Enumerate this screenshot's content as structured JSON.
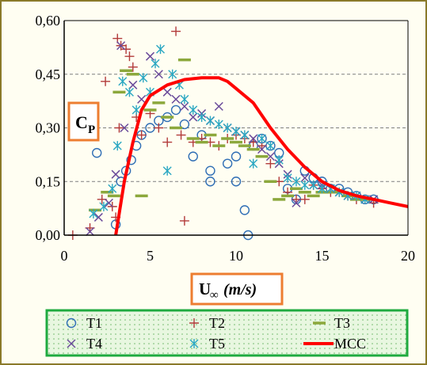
{
  "chart_data": {
    "type": "scatter",
    "title": "",
    "ylabel_main": "C",
    "ylabel_sub": "P",
    "xlabel_main": "U",
    "xlabel_sub": "∞",
    "xlabel_unit": "(m/s)",
    "xlim": [
      0,
      20
    ],
    "ylim": [
      0,
      0.6
    ],
    "x_ticks": [
      0,
      5,
      10,
      15,
      20
    ],
    "x_tick_labels": [
      "0",
      "5",
      "10",
      "15",
      "20"
    ],
    "y_ticks": [
      0,
      0.15,
      0.3,
      0.45,
      0.6
    ],
    "y_tick_labels": [
      "0,00",
      "0,15",
      "0,30",
      "0,45",
      "0,60"
    ],
    "grid": "horizontal dashed",
    "legend_position": "bottom",
    "colors": {
      "T1": "#2f6eb5",
      "T2": "#b23a3a",
      "T3": "#8ca83c",
      "T4": "#6a4a9a",
      "T5": "#2aa7c2",
      "MCC": "#ff0000",
      "frame": "#8a7a2a",
      "label_box": "#ed7d31",
      "legend_box": "#1faa3f",
      "legend_fill": "#e8f7e0"
    },
    "series": [
      {
        "name": "T1",
        "marker": "circle",
        "points": [
          [
            1.9,
            0.23
          ],
          [
            3.0,
            0.03
          ],
          [
            3.3,
            0.15
          ],
          [
            3.6,
            0.18
          ],
          [
            3.9,
            0.21
          ],
          [
            4.2,
            0.25
          ],
          [
            4.5,
            0.28
          ],
          [
            5.0,
            0.3
          ],
          [
            5.5,
            0.32
          ],
          [
            6.0,
            0.33
          ],
          [
            6.5,
            0.35
          ],
          [
            7.0,
            0.31
          ],
          [
            7.5,
            0.22
          ],
          [
            8.0,
            0.28
          ],
          [
            8.5,
            0.18
          ],
          [
            8.5,
            0.15
          ],
          [
            9.5,
            0.2
          ],
          [
            10.0,
            0.15
          ],
          [
            10.0,
            0.22
          ],
          [
            10.5,
            0.07
          ],
          [
            10.7,
            0.0
          ],
          [
            11.0,
            0.25
          ],
          [
            11.5,
            0.27
          ],
          [
            12.0,
            0.25
          ],
          [
            12.5,
            0.23
          ],
          [
            13.0,
            0.13
          ],
          [
            13.5,
            0.1
          ],
          [
            14.0,
            0.18
          ],
          [
            14.5,
            0.16
          ],
          [
            15.0,
            0.15
          ],
          [
            15.5,
            0.13
          ],
          [
            16.0,
            0.13
          ],
          [
            16.5,
            0.12
          ],
          [
            17.0,
            0.11
          ],
          [
            17.5,
            0.1
          ],
          [
            18.0,
            0.1
          ]
        ]
      },
      {
        "name": "T2",
        "marker": "plus",
        "points": [
          [
            0.5,
            0.0
          ],
          [
            1.5,
            0.02
          ],
          [
            2.2,
            0.1
          ],
          [
            2.4,
            0.43
          ],
          [
            2.8,
            0.08
          ],
          [
            3.0,
            0.05
          ],
          [
            3.2,
            0.3
          ],
          [
            3.1,
            0.55
          ],
          [
            3.3,
            0.53
          ],
          [
            3.6,
            0.52
          ],
          [
            3.8,
            0.5
          ],
          [
            4.0,
            0.47
          ],
          [
            4.2,
            0.33
          ],
          [
            4.5,
            0.28
          ],
          [
            5.0,
            0.34
          ],
          [
            5.5,
            0.3
          ],
          [
            6.0,
            0.26
          ],
          [
            6.5,
            0.57
          ],
          [
            6.8,
            0.28
          ],
          [
            7.0,
            0.04
          ],
          [
            7.5,
            0.26
          ],
          [
            8.0,
            0.27
          ],
          [
            8.5,
            0.26
          ],
          [
            9.0,
            0.25
          ],
          [
            9.5,
            0.27
          ],
          [
            10.0,
            0.28
          ],
          [
            10.5,
            0.27
          ],
          [
            11.0,
            0.26
          ],
          [
            11.5,
            0.25
          ],
          [
            12.0,
            0.2
          ],
          [
            12.5,
            0.15
          ],
          [
            13.0,
            0.12
          ],
          [
            13.5,
            0.1
          ],
          [
            14.0,
            0.1
          ],
          [
            14.5,
            0.14
          ],
          [
            15.0,
            0.13
          ],
          [
            15.5,
            0.12
          ],
          [
            16.0,
            0.12
          ],
          [
            16.5,
            0.11
          ],
          [
            17.0,
            0.1
          ],
          [
            17.5,
            0.1
          ],
          [
            18.0,
            0.09
          ]
        ]
      },
      {
        "name": "T3",
        "marker": "dash",
        "points": [
          [
            1.8,
            0.07
          ],
          [
            2.5,
            0.12
          ],
          [
            2.9,
            0.11
          ],
          [
            3.2,
            0.4
          ],
          [
            3.6,
            0.46
          ],
          [
            4.0,
            0.45
          ],
          [
            4.5,
            0.11
          ],
          [
            5.0,
            0.35
          ],
          [
            5.5,
            0.37
          ],
          [
            6.0,
            0.33
          ],
          [
            6.5,
            0.3
          ],
          [
            7.0,
            0.49
          ],
          [
            7.5,
            0.27
          ],
          [
            8.0,
            0.26
          ],
          [
            8.5,
            0.28
          ],
          [
            9.0,
            0.25
          ],
          [
            9.5,
            0.27
          ],
          [
            10.0,
            0.26
          ],
          [
            10.5,
            0.25
          ],
          [
            11.0,
            0.24
          ],
          [
            11.5,
            0.22
          ],
          [
            12.0,
            0.15
          ],
          [
            12.5,
            0.1
          ],
          [
            13.0,
            0.11
          ],
          [
            13.5,
            0.13
          ],
          [
            14.0,
            0.12
          ],
          [
            14.5,
            0.11
          ],
          [
            15.0,
            0.12
          ],
          [
            15.5,
            0.12
          ],
          [
            16.0,
            0.12
          ],
          [
            16.5,
            0.11
          ],
          [
            17.0,
            0.1
          ],
          [
            17.5,
            0.1
          ]
        ]
      },
      {
        "name": "T4",
        "marker": "cross",
        "points": [
          [
            1.5,
            0.01
          ],
          [
            2.0,
            0.05
          ],
          [
            2.6,
            0.09
          ],
          [
            3.0,
            0.17
          ],
          [
            3.3,
            0.53
          ],
          [
            3.5,
            0.3
          ],
          [
            4.0,
            0.42
          ],
          [
            4.5,
            0.38
          ],
          [
            5.0,
            0.5
          ],
          [
            5.5,
            0.45
          ],
          [
            6.0,
            0.4
          ],
          [
            6.5,
            0.38
          ],
          [
            7.0,
            0.36
          ],
          [
            7.5,
            0.33
          ],
          [
            8.0,
            0.34
          ],
          [
            8.5,
            0.32
          ],
          [
            9.0,
            0.36
          ],
          [
            9.5,
            0.3
          ],
          [
            10.0,
            0.29
          ],
          [
            10.5,
            0.28
          ],
          [
            11.0,
            0.27
          ],
          [
            11.5,
            0.24
          ],
          [
            12.0,
            0.22
          ],
          [
            12.5,
            0.2
          ],
          [
            13.0,
            0.17
          ],
          [
            13.5,
            0.09
          ],
          [
            14.0,
            0.16
          ],
          [
            14.5,
            0.14
          ],
          [
            15.0,
            0.14
          ],
          [
            15.5,
            0.13
          ],
          [
            16.0,
            0.12
          ],
          [
            16.5,
            0.11
          ],
          [
            17.0,
            0.11
          ],
          [
            17.5,
            0.1
          ],
          [
            18.0,
            0.1
          ]
        ]
      },
      {
        "name": "T5",
        "marker": "asterisk",
        "points": [
          [
            1.7,
            0.06
          ],
          [
            2.3,
            0.08
          ],
          [
            2.8,
            0.13
          ],
          [
            3.1,
            0.25
          ],
          [
            3.4,
            0.43
          ],
          [
            3.8,
            0.4
          ],
          [
            4.2,
            0.35
          ],
          [
            4.6,
            0.44
          ],
          [
            5.0,
            0.4
          ],
          [
            5.3,
            0.48
          ],
          [
            5.6,
            0.52
          ],
          [
            6.0,
            0.18
          ],
          [
            6.3,
            0.45
          ],
          [
            6.7,
            0.42
          ],
          [
            7.0,
            0.38
          ],
          [
            7.5,
            0.35
          ],
          [
            8.0,
            0.33
          ],
          [
            8.5,
            0.32
          ],
          [
            9.0,
            0.31
          ],
          [
            9.5,
            0.3
          ],
          [
            10.0,
            0.29
          ],
          [
            10.5,
            0.28
          ],
          [
            11.0,
            0.2
          ],
          [
            11.5,
            0.27
          ],
          [
            12.0,
            0.25
          ],
          [
            12.5,
            0.21
          ],
          [
            13.0,
            0.16
          ],
          [
            13.5,
            0.15
          ],
          [
            14.0,
            0.14
          ],
          [
            14.5,
            0.14
          ],
          [
            15.0,
            0.13
          ],
          [
            15.5,
            0.13
          ],
          [
            16.0,
            0.12
          ],
          [
            16.5,
            0.11
          ],
          [
            17.0,
            0.11
          ],
          [
            17.5,
            0.1
          ]
        ]
      },
      {
        "name": "MCC",
        "marker": "line",
        "points": [
          [
            3.0,
            0.0
          ],
          [
            3.5,
            0.15
          ],
          [
            4.0,
            0.26
          ],
          [
            4.5,
            0.35
          ],
          [
            5.0,
            0.39
          ],
          [
            6.0,
            0.42
          ],
          [
            7.0,
            0.435
          ],
          [
            8.0,
            0.44
          ],
          [
            9.0,
            0.44
          ],
          [
            9.5,
            0.43
          ],
          [
            10.0,
            0.41
          ],
          [
            11.0,
            0.37
          ],
          [
            12.0,
            0.3
          ],
          [
            13.0,
            0.24
          ],
          [
            14.0,
            0.19
          ],
          [
            15.0,
            0.15
          ],
          [
            16.0,
            0.125
          ],
          [
            17.0,
            0.11
          ],
          [
            18.0,
            0.1
          ],
          [
            19.0,
            0.09
          ],
          [
            20.0,
            0.08
          ]
        ]
      }
    ]
  },
  "legend": {
    "items": [
      {
        "label": "T1"
      },
      {
        "label": "T2"
      },
      {
        "label": "T3"
      },
      {
        "label": "T4"
      },
      {
        "label": "T5"
      },
      {
        "label": "MCC"
      }
    ]
  }
}
